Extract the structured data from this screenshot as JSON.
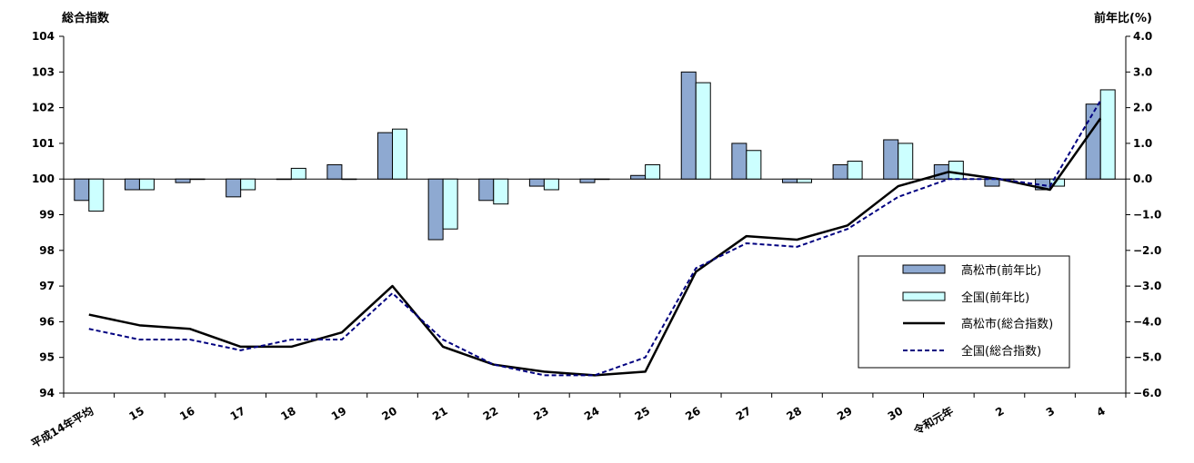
{
  "chart_data": {
    "type": "bar+line",
    "left_axis_title": "総合指数",
    "right_axis_title": "前年比(%)",
    "left_ylim": [
      94,
      104
    ],
    "right_ylim": [
      -6.0,
      4.0
    ],
    "left_ticks": [
      "104",
      "103",
      "102",
      "101",
      "100",
      "99",
      "98",
      "97",
      "96",
      "95",
      "94"
    ],
    "right_ticks": [
      "4.0",
      "3.0",
      "2.0",
      "1.0",
      "0.0",
      "−1.0",
      "−2.0",
      "−3.0",
      "−4.0",
      "−5.0",
      "−6.0"
    ],
    "categories": [
      "平成14年平均",
      "15",
      "16",
      "17",
      "18",
      "19",
      "20",
      "21",
      "22",
      "23",
      "24",
      "25",
      "26",
      "27",
      "28",
      "29",
      "30",
      "令和元年",
      "2",
      "3",
      "4"
    ],
    "series": [
      {
        "name": "高松市(前年比)",
        "kind": "bar",
        "axis": "right",
        "color": "#8EA9D1",
        "values": [
          -0.6,
          -0.3,
          -0.1,
          -0.5,
          0.0,
          0.4,
          1.3,
          -1.7,
          -0.6,
          -0.2,
          -0.1,
          0.1,
          3.0,
          1.0,
          -0.1,
          0.4,
          1.1,
          0.4,
          -0.2,
          -0.3,
          2.1
        ]
      },
      {
        "name": "全国(前年比)",
        "kind": "bar",
        "axis": "right",
        "color": "#CCFFFF",
        "values": [
          -0.9,
          -0.3,
          0.0,
          -0.3,
          0.3,
          0.0,
          1.4,
          -1.4,
          -0.7,
          -0.3,
          0.0,
          0.4,
          2.7,
          0.8,
          -0.1,
          0.5,
          1.0,
          0.5,
          0.0,
          -0.2,
          2.5
        ]
      },
      {
        "name": "高松市(総合指数)",
        "kind": "line",
        "axis": "left",
        "color": "#000000",
        "style": "solid",
        "values": [
          96.2,
          95.9,
          95.8,
          95.3,
          95.3,
          95.7,
          97.0,
          95.3,
          94.8,
          94.6,
          94.5,
          94.6,
          97.4,
          98.4,
          98.3,
          98.7,
          99.8,
          100.2,
          100.0,
          99.7,
          101.7
        ]
      },
      {
        "name": "全国(総合指数)",
        "kind": "line",
        "axis": "left",
        "color": "#000080",
        "style": "dashed",
        "values": [
          95.8,
          95.5,
          95.5,
          95.2,
          95.5,
          95.5,
          96.8,
          95.5,
          94.8,
          94.5,
          94.5,
          95.0,
          97.5,
          98.2,
          98.1,
          98.6,
          99.5,
          100.0,
          100.0,
          99.8,
          102.2
        ]
      }
    ],
    "legend_position": "bottom-right"
  }
}
